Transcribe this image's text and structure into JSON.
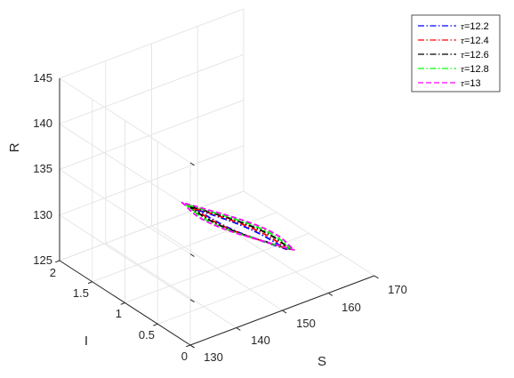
{
  "chart_data": {
    "type": "line",
    "subtype": "3d-parametric",
    "title": "",
    "xlabel": "S",
    "ylabel": "I",
    "zlabel": "R",
    "xlim": [
      130,
      170
    ],
    "ylim": [
      0,
      2
    ],
    "zlim": [
      125,
      145
    ],
    "xticks": [
      "130",
      "140",
      "150",
      "160",
      "170"
    ],
    "yticks": [
      "0",
      "0.5",
      "1",
      "1.5",
      "2"
    ],
    "zticks": [
      "125",
      "130",
      "135",
      "140",
      "145"
    ],
    "grid": true,
    "legend_position": "top-right",
    "series": [
      {
        "legend_value": "12.2",
        "color": "#0000ff",
        "line_style": "dash-dot",
        "start_point": {
          "S": 139.8,
          "I": 0.62,
          "R": 135.2
        },
        "end_point": {
          "S": 159.5,
          "I": 0.6,
          "R": 127.1
        },
        "half_width_I": 0.1,
        "half_width_R": 1.0
      },
      {
        "legend_value": "12.4",
        "color": "#ff0000",
        "line_style": "dash-dot",
        "start_point": {
          "S": 139.5,
          "I": 0.65,
          "R": 135.3
        },
        "end_point": {
          "S": 160.0,
          "I": 0.6,
          "R": 127.0
        },
        "half_width_I": 0.17,
        "half_width_R": 1.4
      },
      {
        "legend_value": "12.6",
        "color": "#000000",
        "line_style": "dash-dot",
        "start_point": {
          "S": 139.2,
          "I": 0.68,
          "R": 135.4
        },
        "end_point": {
          "S": 160.5,
          "I": 0.6,
          "R": 126.9
        },
        "half_width_I": 0.24,
        "half_width_R": 1.8
      },
      {
        "legend_value": "12.8",
        "color": "#00ff00",
        "line_style": "dash-dot",
        "start_point": {
          "S": 138.9,
          "I": 0.71,
          "R": 135.5
        },
        "end_point": {
          "S": 160.8,
          "I": 0.6,
          "R": 126.8
        },
        "half_width_I": 0.3,
        "half_width_R": 2.2
      },
      {
        "legend_value": "13",
        "color": "#ff00ff",
        "line_style": "dash-dash",
        "start_point": {
          "S": 138.6,
          "I": 0.74,
          "R": 135.6
        },
        "end_point": {
          "S": 161.2,
          "I": 0.6,
          "R": 126.7
        },
        "half_width_I": 0.36,
        "half_width_R": 2.6
      }
    ]
  },
  "legend": {
    "prefix": "τ=",
    "items": [
      {
        "label": "12.2",
        "color": "#0000ff"
      },
      {
        "label": "12.4",
        "color": "#ff0000"
      },
      {
        "label": "12.6",
        "color": "#000000"
      },
      {
        "label": "12.8",
        "color": "#00ff00"
      },
      {
        "label": "13",
        "color": "#ff00ff"
      }
    ]
  },
  "colors": {
    "axis": "#262626",
    "grid": "#e6e6e6",
    "background": "#ffffff"
  }
}
